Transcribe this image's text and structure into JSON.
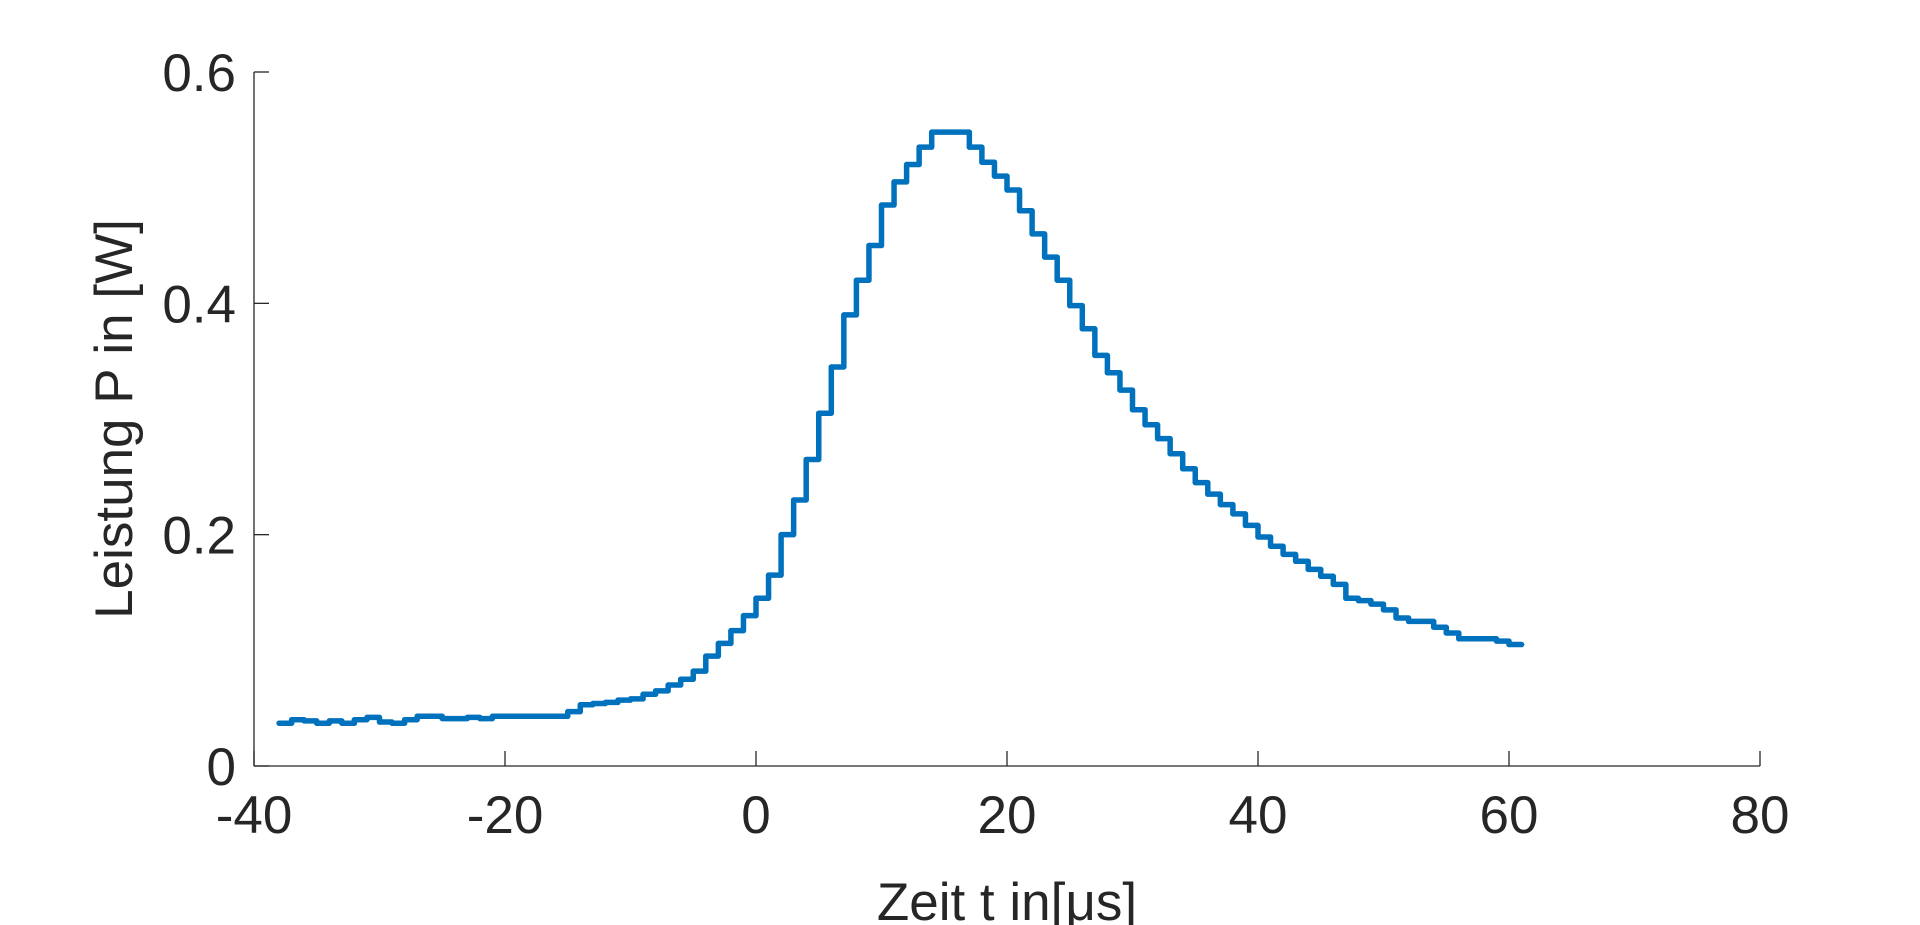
{
  "chart_data": {
    "type": "line",
    "xlabel": "Zeit t in[μs]",
    "ylabel": "Leistung P in [W]",
    "xlim": [
      -40,
      80
    ],
    "ylim": [
      0,
      0.6
    ],
    "x_ticks": [
      -40,
      -20,
      0,
      20,
      40,
      60,
      80
    ],
    "y_ticks": [
      0,
      0.2,
      0.4,
      0.6
    ],
    "x_tick_labels": [
      "-40",
      "-20",
      "0",
      "20",
      "40",
      "60",
      "80"
    ],
    "y_tick_labels": [
      "0",
      "0.2",
      "0.4",
      "0.6"
    ],
    "grid": false,
    "box": false,
    "line_color": "#0072BD",
    "series": [
      {
        "x": [
          -38,
          -37,
          -36,
          -35,
          -34,
          -33,
          -32,
          -31,
          -30,
          -29,
          -28,
          -27,
          -26,
          -25,
          -24,
          -23,
          -22,
          -21,
          -20,
          -19,
          -18,
          -17,
          -16,
          -15,
          -14,
          -13,
          -12,
          -11,
          -10,
          -9,
          -8,
          -7,
          -6,
          -5,
          -4,
          -3,
          -2,
          -1,
          0,
          1,
          2,
          3,
          4,
          5,
          6,
          7,
          8,
          9,
          10,
          11,
          12,
          13,
          14,
          15,
          16,
          17,
          18,
          19,
          20,
          21,
          22,
          23,
          24,
          25,
          26,
          27,
          28,
          29,
          30,
          31,
          32,
          33,
          34,
          35,
          36,
          37,
          38,
          39,
          40,
          41,
          42,
          43,
          44,
          45,
          46,
          47,
          48,
          49,
          50,
          51,
          52,
          53,
          54,
          55,
          56,
          57,
          58,
          59,
          60,
          61
        ],
        "y": [
          0.037,
          0.04,
          0.039,
          0.037,
          0.039,
          0.037,
          0.04,
          0.042,
          0.038,
          0.037,
          0.04,
          0.043,
          0.043,
          0.041,
          0.041,
          0.042,
          0.041,
          0.043,
          0.043,
          0.043,
          0.043,
          0.043,
          0.043,
          0.047,
          0.053,
          0.054,
          0.055,
          0.057,
          0.058,
          0.062,
          0.065,
          0.07,
          0.075,
          0.082,
          0.095,
          0.106,
          0.117,
          0.13,
          0.145,
          0.165,
          0.2,
          0.23,
          0.265,
          0.305,
          0.345,
          0.39,
          0.42,
          0.45,
          0.485,
          0.505,
          0.52,
          0.535,
          0.548,
          0.548,
          0.548,
          0.535,
          0.522,
          0.51,
          0.498,
          0.48,
          0.46,
          0.44,
          0.42,
          0.398,
          0.378,
          0.355,
          0.34,
          0.325,
          0.308,
          0.295,
          0.283,
          0.27,
          0.257,
          0.245,
          0.235,
          0.226,
          0.218,
          0.208,
          0.198,
          0.19,
          0.183,
          0.177,
          0.17,
          0.164,
          0.157,
          0.145,
          0.143,
          0.14,
          0.135,
          0.128,
          0.125,
          0.125,
          0.12,
          0.115,
          0.11,
          0.11,
          0.11,
          0.108,
          0.105,
          0.105
        ]
      }
    ]
  }
}
